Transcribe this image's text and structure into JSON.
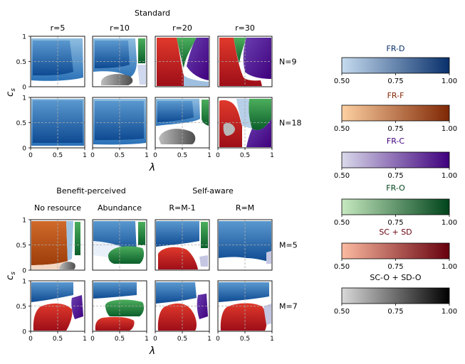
{
  "chart_data": {
    "type": "heatmap",
    "description_axes": {
      "x_label": "λ",
      "y_label": "c_s",
      "x_ticks": [
        "0",
        "0.5",
        "1"
      ],
      "y_ticks": [
        "0",
        "0.5",
        "1"
      ],
      "x_range": [
        0,
        1
      ],
      "y_range": [
        0,
        1
      ]
    },
    "top_block": {
      "title": "Standard",
      "columns": [
        "r=5",
        "r=10",
        "r=20",
        "r=30"
      ],
      "rows": [
        "N=9",
        "N=18"
      ]
    },
    "bottom_block": {
      "group_titles": [
        "Benefit-perceived",
        "Self-aware"
      ],
      "columns": [
        "No resource",
        "Abundance",
        "R=M-1",
        "R=M"
      ],
      "rows": [
        "M=5",
        "M=7"
      ]
    },
    "colorbars": [
      {
        "label": "FR-D",
        "label_color": "#08306b",
        "from": "#c6dbef",
        "to": "#08306b",
        "ticks": [
          "0.50",
          "0.75",
          "1.00"
        ]
      },
      {
        "label": "FR-F",
        "label_color": "#7f2704",
        "from": "#fdd0a2",
        "to": "#7f2704",
        "ticks": [
          "0.50",
          "0.75",
          "1.00"
        ]
      },
      {
        "label": "FR-C",
        "label_color": "#3f007d",
        "from": "#dadaeb",
        "to": "#3f007d",
        "ticks": [
          "0.50",
          "0.75",
          "1.00"
        ]
      },
      {
        "label": "FR-O",
        "label_color": "#00441b",
        "from": "#c7e9c0",
        "to": "#00441b",
        "ticks": [
          "0.50",
          "0.75",
          "1.00"
        ]
      },
      {
        "label": "SC + SD",
        "label_color": "#67000d",
        "from": "#fcbba1",
        "to": "#67000d",
        "ticks": [
          "0.50",
          "0.75",
          "1.00"
        ]
      },
      {
        "label": "SC-O + SD-O",
        "label_color": "#000000",
        "from": "#d9d9d9",
        "to": "#000000",
        "ticks": [
          "0.50",
          "0.75",
          "1.00"
        ]
      }
    ],
    "colors": {
      "FR-D": "#2a6fb4",
      "FR-D-dark": "#0b3f82",
      "FR-F": "#b5501a",
      "FR-C": "#4a1790",
      "FR-O": "#1b7a3a",
      "SC+SD": "#c4121d",
      "SCO+SDO": "#555555"
    }
  }
}
